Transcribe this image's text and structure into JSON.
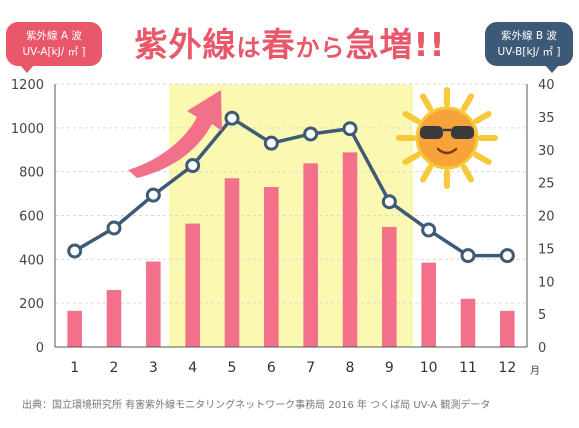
{
  "badges": {
    "uva_title": "紫外線 A 波",
    "uva_unit": "UV-A[kJ/ ㎡ ]",
    "uvb_title": "紫外線 B 波",
    "uvb_unit": "UV-B[kJ/ ㎡ ]"
  },
  "headline": {
    "part1": "紫外線",
    "part2": "は",
    "part3": "春",
    "part4": "から",
    "part5": "急増!!"
  },
  "source": "出典：国立環境研究所 有害紫外線モニタリングネットワーク事務局 2016 年 つくば局 UV-A 観測データ",
  "colors": {
    "bar": "#f2708a",
    "line": "#3d5a76",
    "highlight": "#fbf8b2",
    "arrow": "#f2708a",
    "axis": "#555555",
    "grid": "#d9d9d9"
  },
  "icons": [
    "sun-with-sunglasses-icon",
    "upward-arrow-icon"
  ],
  "chart_data": {
    "type": "bar+line",
    "categories": [
      "1",
      "2",
      "3",
      "4",
      "5",
      "6",
      "7",
      "8",
      "9",
      "10",
      "11",
      "12"
    ],
    "x_unit": "月",
    "series": [
      {
        "name": "UV-A[kJ/ ㎡ ]",
        "type": "bar",
        "axis": "left",
        "values": [
          165,
          260,
          390,
          563,
          770,
          730,
          838,
          888,
          548,
          385,
          220,
          165
        ]
      },
      {
        "name": "UV-B[kJ/ ㎡ ]",
        "type": "line",
        "axis": "right",
        "values": [
          14.6,
          18.1,
          23.1,
          27.6,
          34.8,
          31.0,
          32.4,
          33.2,
          22.1,
          17.8,
          13.9,
          13.9
        ]
      }
    ],
    "left_axis": {
      "ylim": [
        0,
        1200
      ],
      "ticks": [
        0,
        200,
        400,
        600,
        800,
        1000,
        1200
      ]
    },
    "right_axis": {
      "ylim": [
        0,
        40
      ],
      "ticks": [
        0,
        5,
        10,
        15,
        20,
        25,
        30,
        35,
        40
      ]
    },
    "highlight_range": [
      "4",
      "9"
    ],
    "grid": true
  }
}
